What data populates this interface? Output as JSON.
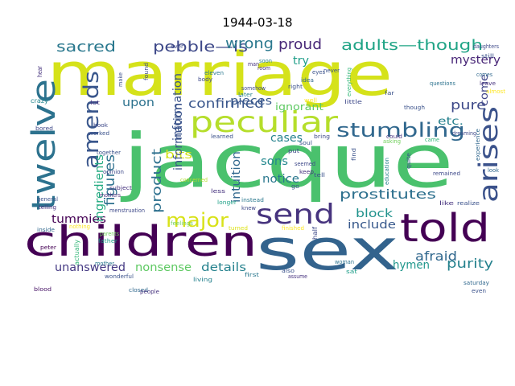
{
  "title": "1944-03-18",
  "words": [
    {
      "text": "marriage",
      "color": "#d5e21a"
    },
    {
      "text": "jacque",
      "color": "#4ac16d"
    },
    {
      "text": "sex",
      "color": "#33638d"
    },
    {
      "text": "children",
      "color": "#440154"
    },
    {
      "text": "told",
      "color": "#440154"
    },
    {
      "text": "twelve",
      "color": "#2c728e"
    },
    {
      "text": "peculiar",
      "color": "#b5de2b"
    },
    {
      "text": "arises",
      "color": "#3b528b"
    },
    {
      "text": "amends",
      "color": "#39568c"
    },
    {
      "text": "send",
      "color": "#46337e"
    },
    {
      "text": "major",
      "color": "#d8e219"
    },
    {
      "text": "stumbling",
      "color": "#31688e"
    },
    {
      "text": "sacred",
      "color": "#2a788e"
    },
    {
      "text": "pebble—is",
      "color": "#3e4989"
    },
    {
      "text": "wrong",
      "color": "#2a788e"
    },
    {
      "text": "proud",
      "color": "#482878"
    },
    {
      "text": "adults—though",
      "color": "#20a486"
    },
    {
      "text": "mystery",
      "color": "#482677"
    },
    {
      "text": "upon",
      "color": "#2c728e"
    },
    {
      "text": "confirmed",
      "color": "#39568c"
    },
    {
      "text": "pure",
      "color": "#3e4a89"
    },
    {
      "text": "figures",
      "color": "#2d708e"
    },
    {
      "text": "product",
      "color": "#2d708e"
    },
    {
      "text": "information",
      "color": "#3a538b"
    },
    {
      "text": "bits",
      "color": "#d0e11c"
    },
    {
      "text": "pieces",
      "color": "#38588c"
    },
    {
      "text": "ignorant",
      "color": "#5ec962"
    },
    {
      "text": "cases",
      "color": "#26828e"
    },
    {
      "text": "etc.",
      "color": "#26818e"
    },
    {
      "text": "come",
      "color": "#404588"
    },
    {
      "text": "intuition",
      "color": "#31688e"
    },
    {
      "text": "sons",
      "color": "#23888e"
    },
    {
      "text": "notice",
      "color": "#2a788e"
    },
    {
      "text": "prostitutes",
      "color": "#2d708e"
    },
    {
      "text": "afraid",
      "color": "#31688e"
    },
    {
      "text": "block",
      "color": "#20928c"
    },
    {
      "text": "include",
      "color": "#38598c"
    },
    {
      "text": "hymen",
      "color": "#1f968b"
    },
    {
      "text": "purity",
      "color": "#26828e"
    },
    {
      "text": "tummies",
      "color": "#440154"
    },
    {
      "text": "ingredients",
      "color": "#25ab82"
    },
    {
      "text": "unanswered",
      "color": "#443983"
    },
    {
      "text": "nonsense",
      "color": "#5ec962"
    },
    {
      "text": "details",
      "color": "#26828e"
    },
    {
      "text": "try",
      "color": "#1f9e89"
    },
    {
      "text": "information",
      "color": "#3a538b"
    },
    {
      "text": "hear",
      "color": "#46337e"
    },
    {
      "text": "crazy",
      "color": "#24878e"
    },
    {
      "text": "bored",
      "color": "#3e4989"
    },
    {
      "text": "general",
      "color": "#3b528b"
    },
    {
      "text": "telling",
      "color": "#472f7d"
    },
    {
      "text": "inside",
      "color": "#31688e"
    },
    {
      "text": "peter",
      "color": "#440154"
    },
    {
      "text": "blood",
      "color": "#481467"
    },
    {
      "text": "nothing",
      "color": "#fde725"
    },
    {
      "text": "actually",
      "color": "#35b779"
    },
    {
      "text": "mother",
      "color": "#2a788e"
    },
    {
      "text": "wonderful",
      "color": "#3b528b"
    },
    {
      "text": "father",
      "color": "#1f9e89"
    },
    {
      "text": "mothers",
      "color": "#472d7b"
    },
    {
      "text": "opinion",
      "color": "#3e4989"
    },
    {
      "text": "together",
      "color": "#3b528b"
    },
    {
      "text": "subject",
      "color": "#46327e"
    },
    {
      "text": "parents",
      "color": "#6ece58"
    },
    {
      "text": "closed",
      "color": "#31688e"
    },
    {
      "text": "people",
      "color": "#46327e"
    },
    {
      "text": "feelings",
      "color": "#6ece58"
    },
    {
      "text": "longer",
      "color": "#1fa187"
    },
    {
      "text": "concerned",
      "color": "#b5de2b"
    },
    {
      "text": "learned",
      "color": "#3b528b"
    },
    {
      "text": "living",
      "color": "#26828e"
    },
    {
      "text": "less",
      "color": "#46327e"
    },
    {
      "text": "instead",
      "color": "#2a788e"
    },
    {
      "text": "knew",
      "color": "#3e4989"
    },
    {
      "text": "turned",
      "color": "#dde318"
    },
    {
      "text": "first",
      "color": "#2a788e"
    },
    {
      "text": "also",
      "color": "#3b528b"
    },
    {
      "text": "assume",
      "color": "#46327e"
    },
    {
      "text": "woman",
      "color": "#2c728e"
    },
    {
      "text": "sat",
      "color": "#1f9e89"
    },
    {
      "text": "saturday",
      "color": "#31688e"
    },
    {
      "text": "even",
      "color": "#3b528b"
    },
    {
      "text": "body",
      "color": "#3e4989"
    },
    {
      "text": "eleven",
      "color": "#2a788e"
    },
    {
      "text": "somehow",
      "color": "#3e4989"
    },
    {
      "text": "later",
      "color": "#26828e"
    },
    {
      "text": "right",
      "color": "#3b528b"
    },
    {
      "text": "idea",
      "color": "#31688e"
    },
    {
      "text": "man",
      "color": "#46327e"
    },
    {
      "text": "soon",
      "color": "#26828e"
    },
    {
      "text": "room",
      "color": "#46327e"
    },
    {
      "text": "eyes",
      "color": "#3b528b"
    },
    {
      "text": "well",
      "color": "#fde725"
    },
    {
      "text": "ever",
      "color": "#3e4989"
    },
    {
      "text": "never",
      "color": "#3b528b"
    },
    {
      "text": "everything",
      "color": "#35b779"
    },
    {
      "text": "little",
      "color": "#3e4989"
    },
    {
      "text": "though",
      "color": "#3b528b"
    },
    {
      "text": "questions",
      "color": "#2c728e"
    },
    {
      "text": "daughters",
      "color": "#3e4989"
    },
    {
      "text": "still",
      "color": "#3b528b"
    },
    {
      "text": "comes",
      "color": "#31688e"
    },
    {
      "text": "leave",
      "color": "#46327e"
    },
    {
      "text": "dreaming",
      "color": "#3e4989"
    },
    {
      "text": "asking",
      "color": "#6ece58"
    },
    {
      "text": "could",
      "color": "#46327e"
    },
    {
      "text": "find",
      "color": "#3b528b"
    },
    {
      "text": "education",
      "color": "#26828e"
    },
    {
      "text": "quite",
      "color": "#3b528b"
    },
    {
      "text": "remained",
      "color": "#3e4989"
    },
    {
      "text": "like",
      "color": "#46327e"
    },
    {
      "text": "realize",
      "color": "#3b528b"
    },
    {
      "text": "look",
      "color": "#31688e"
    },
    {
      "text": "seemed",
      "color": "#3e4989"
    },
    {
      "text": "keep",
      "color": "#46327e"
    },
    {
      "text": "tell",
      "color": "#3b528b"
    },
    {
      "text": "put",
      "color": "#3e4989"
    },
    {
      "text": "soul",
      "color": "#3b528b"
    },
    {
      "text": "bring",
      "color": "#3e4989"
    },
    {
      "text": "finished",
      "color": "#fde725"
    },
    {
      "text": "book",
      "color": "#3e4989"
    },
    {
      "text": "worked",
      "color": "#3b528b"
    },
    {
      "text": "lot",
      "color": "#46327e"
    },
    {
      "text": "make",
      "color": "#3b528b"
    },
    {
      "text": "menstruation",
      "color": "#3e4989"
    },
    {
      "text": "found",
      "color": "#3e4989"
    },
    {
      "text": "far",
      "color": "#3b528b"
    },
    {
      "text": "came",
      "color": "#35b779"
    },
    {
      "text": "experience",
      "color": "#31688e"
    },
    {
      "text": "almost",
      "color": "#fde725"
    },
    {
      "text": "half",
      "color": "#3e4989"
    },
    {
      "text": "go",
      "color": "#3b528b"
    }
  ]
}
